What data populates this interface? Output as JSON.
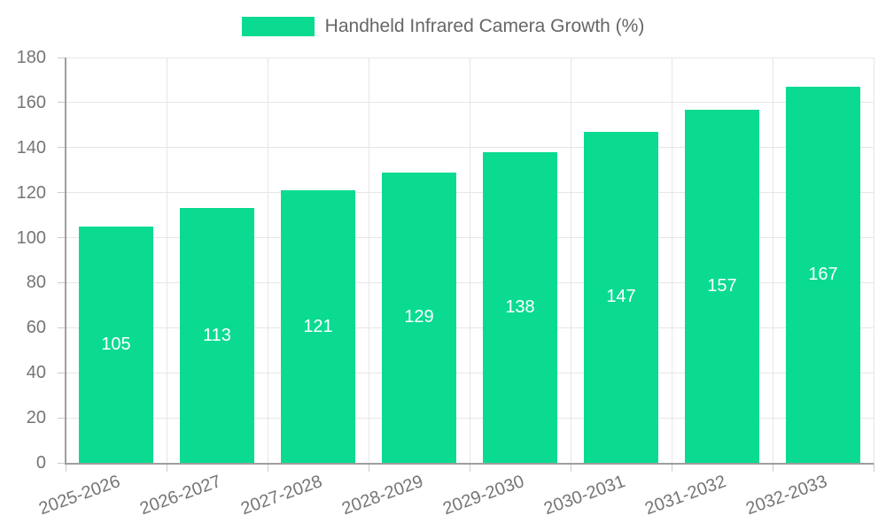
{
  "legend": {
    "label": "Handheld Infrared Camera Growth (%)"
  },
  "chart_data": {
    "type": "bar",
    "title": "Handheld Infrared Camera Growth (%)",
    "categories": [
      "2025-2026",
      "2026-2027",
      "2027-2028",
      "2028-2029",
      "2029-2030",
      "2030-2031",
      "2031-2032",
      "2032-2033"
    ],
    "series": [
      {
        "name": "Handheld Infrared Camera Growth (%)",
        "values": [
          105,
          113,
          121,
          129,
          138,
          147,
          157,
          167
        ]
      }
    ],
    "bar_labels": [
      105,
      113,
      121,
      129,
      138,
      147,
      157,
      167
    ],
    "xlabel": "",
    "ylabel": "",
    "ylim": [
      0,
      180
    ],
    "ytick_step": 20,
    "grid": true,
    "legend_position": "top-center",
    "x_label_rotation_deg": -20,
    "colors": {
      "bar": "#0adb90",
      "bar_label_text": "#ffffff",
      "axis_line": "#9e9e9e",
      "grid_line": "#e6e6e6",
      "tick_mark": "#cccccc",
      "tick_text": "#757575",
      "legend_text": "#666666",
      "background": "#ffffff"
    }
  }
}
